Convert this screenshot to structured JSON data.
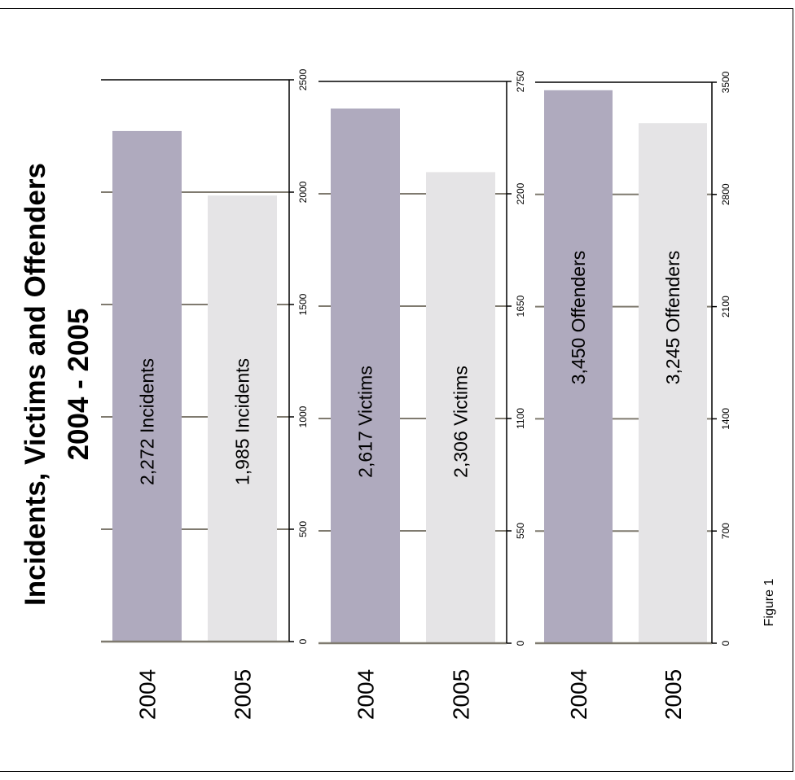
{
  "colors": {
    "bar_2004": "#afaabe",
    "bar_2005": "#e5e4e6",
    "axis": "#000000",
    "grid": "#7f7a6f"
  },
  "chart_data": [
    {
      "type": "bar",
      "title": "Incidents, Victims and Offenders",
      "subtitle": "2004 - 2005",
      "categories": [
        "2004",
        "2005"
      ],
      "values": [
        2272,
        1985
      ],
      "bar_labels": [
        "2,272 Incidents",
        "1,985 Incidents"
      ],
      "ylim": [
        0,
        2500
      ],
      "ticks": [
        0,
        500,
        1000,
        1500,
        2000,
        2500
      ],
      "tick_labels": [
        "0",
        "500",
        "1000",
        "1500",
        "2000",
        "2500"
      ],
      "grid": true
    },
    {
      "type": "bar",
      "categories": [
        "2004",
        "2005"
      ],
      "values": [
        2617,
        2306
      ],
      "bar_labels": [
        "2,617 Victims",
        "2,306 Victims"
      ],
      "ylim": [
        0,
        2750
      ],
      "ticks": [
        0,
        550,
        1100,
        1650,
        2200,
        2750
      ],
      "tick_labels": [
        "0",
        "550",
        "1100",
        "1650",
        "2200",
        "2750"
      ],
      "grid": true
    },
    {
      "type": "bar",
      "categories": [
        "2004",
        "2005"
      ],
      "values": [
        3450,
        3245
      ],
      "bar_labels": [
        "3,450 Offenders",
        "3,245 Offenders"
      ],
      "ylim": [
        0,
        3500
      ],
      "ticks": [
        0,
        700,
        1400,
        2100,
        2800,
        3500
      ],
      "tick_labels": [
        "0",
        "700",
        "1400",
        "2100",
        "2800",
        "3500"
      ],
      "grid": true
    }
  ],
  "figure_caption": "Figure 1"
}
